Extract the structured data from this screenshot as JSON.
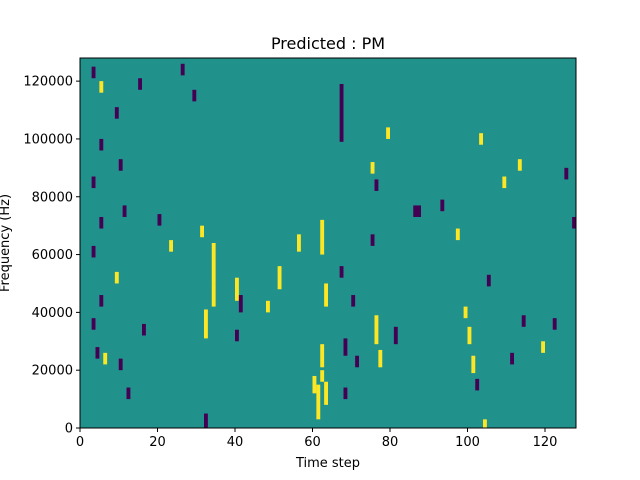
{
  "chart_data": {
    "type": "heatmap",
    "title": "Predicted : PM",
    "xlabel": "Time step",
    "ylabel": "Frequency (Hz)",
    "xlim": [
      0,
      128
    ],
    "ylim": [
      0,
      128000
    ],
    "x_ticks": [
      0,
      20,
      40,
      60,
      80,
      100,
      120
    ],
    "y_ticks": [
      0,
      20000,
      40000,
      60000,
      80000,
      100000,
      120000
    ],
    "x_tick_labels": [
      "0",
      "20",
      "40",
      "60",
      "80",
      "100",
      "120"
    ],
    "y_tick_labels": [
      "0",
      "20000",
      "40000",
      "60000",
      "80000",
      "100000",
      "120000"
    ],
    "grid": false,
    "legend": "none",
    "colormap": "viridis",
    "background_value": 0,
    "colors": {
      "background": "#21918c",
      "high": "#fde725",
      "low": "#440154"
    },
    "value_meaning": {
      "high": 1,
      "low": -1
    },
    "cells_units": "x in time steps, y in Hz",
    "cells": [
      {
        "x": 3,
        "y": 121000,
        "w": 1,
        "h": 4000,
        "v": -1
      },
      {
        "x": 5,
        "y": 116000,
        "w": 1,
        "h": 4000,
        "v": 1
      },
      {
        "x": 5,
        "y": 96000,
        "w": 1,
        "h": 4000,
        "v": -1
      },
      {
        "x": 3,
        "y": 83000,
        "w": 1,
        "h": 4000,
        "v": -1
      },
      {
        "x": 5,
        "y": 69000,
        "w": 1,
        "h": 4000,
        "v": -1
      },
      {
        "x": 3,
        "y": 59000,
        "w": 1,
        "h": 4000,
        "v": -1
      },
      {
        "x": 5,
        "y": 42000,
        "w": 1,
        "h": 4000,
        "v": -1
      },
      {
        "x": 3,
        "y": 34000,
        "w": 1,
        "h": 4000,
        "v": -1
      },
      {
        "x": 4,
        "y": 24000,
        "w": 1,
        "h": 4000,
        "v": -1
      },
      {
        "x": 6,
        "y": 22000,
        "w": 1,
        "h": 4000,
        "v": 1
      },
      {
        "x": 9,
        "y": 107000,
        "w": 1,
        "h": 4000,
        "v": -1
      },
      {
        "x": 10,
        "y": 89000,
        "w": 1,
        "h": 4000,
        "v": -1
      },
      {
        "x": 11,
        "y": 73000,
        "w": 1,
        "h": 4000,
        "v": -1
      },
      {
        "x": 9,
        "y": 50000,
        "w": 1,
        "h": 4000,
        "v": 1
      },
      {
        "x": 10,
        "y": 20000,
        "w": 1,
        "h": 4000,
        "v": -1
      },
      {
        "x": 12,
        "y": 10000,
        "w": 1,
        "h": 4000,
        "v": -1
      },
      {
        "x": 15,
        "y": 117000,
        "w": 1,
        "h": 4000,
        "v": -1
      },
      {
        "x": 16,
        "y": 32000,
        "w": 1,
        "h": 4000,
        "v": -1
      },
      {
        "x": 20,
        "y": 70000,
        "w": 1,
        "h": 4000,
        "v": -1
      },
      {
        "x": 23,
        "y": 61000,
        "w": 1,
        "h": 4000,
        "v": 1
      },
      {
        "x": 26,
        "y": 122000,
        "w": 1,
        "h": 4000,
        "v": -1
      },
      {
        "x": 29,
        "y": 113000,
        "w": 1,
        "h": 4000,
        "v": -1
      },
      {
        "x": 31,
        "y": 66000,
        "w": 1,
        "h": 4000,
        "v": 1
      },
      {
        "x": 32,
        "y": 31000,
        "w": 1,
        "h": 10000,
        "v": 1
      },
      {
        "x": 32,
        "y": -1000,
        "w": 1,
        "h": 6000,
        "v": -1
      },
      {
        "x": 34,
        "y": 50000,
        "w": 1,
        "h": 14000,
        "v": 1
      },
      {
        "x": 34,
        "y": 42000,
        "w": 1,
        "h": 8000,
        "v": 1
      },
      {
        "x": 40,
        "y": 30000,
        "w": 1,
        "h": 4000,
        "v": -1
      },
      {
        "x": 40,
        "y": 44000,
        "w": 1,
        "h": 8000,
        "v": 1
      },
      {
        "x": 41,
        "y": 40000,
        "w": 1,
        "h": 6000,
        "v": -1
      },
      {
        "x": 48,
        "y": 40000,
        "w": 1,
        "h": 4000,
        "v": 1
      },
      {
        "x": 51,
        "y": 48000,
        "w": 1,
        "h": 8000,
        "v": 1
      },
      {
        "x": 56,
        "y": 61000,
        "w": 1,
        "h": 6000,
        "v": 1
      },
      {
        "x": 62,
        "y": 21000,
        "w": 1,
        "h": 8000,
        "v": 1
      },
      {
        "x": 60,
        "y": 12000,
        "w": 1,
        "h": 6000,
        "v": 1
      },
      {
        "x": 61,
        "y": 3000,
        "w": 1,
        "h": 12000,
        "v": 1
      },
      {
        "x": 62,
        "y": 16000,
        "w": 1,
        "h": 4000,
        "v": 1
      },
      {
        "x": 63,
        "y": 8000,
        "w": 1,
        "h": 8000,
        "v": 1
      },
      {
        "x": 62,
        "y": 60000,
        "w": 1,
        "h": 12000,
        "v": 1
      },
      {
        "x": 63,
        "y": 42000,
        "w": 1,
        "h": 8000,
        "v": 1
      },
      {
        "x": 67,
        "y": 99000,
        "w": 1,
        "h": 20000,
        "v": -1
      },
      {
        "x": 67,
        "y": 52000,
        "w": 1,
        "h": 4000,
        "v": -1
      },
      {
        "x": 68,
        "y": 25000,
        "w": 1,
        "h": 6000,
        "v": -1
      },
      {
        "x": 68,
        "y": 10000,
        "w": 1,
        "h": 4000,
        "v": -1
      },
      {
        "x": 70,
        "y": 42000,
        "w": 1,
        "h": 4000,
        "v": -1
      },
      {
        "x": 71,
        "y": 21000,
        "w": 1,
        "h": 4000,
        "v": -1
      },
      {
        "x": 75,
        "y": 88000,
        "w": 1,
        "h": 4000,
        "v": 1
      },
      {
        "x": 75,
        "y": 63000,
        "w": 1,
        "h": 4000,
        "v": -1
      },
      {
        "x": 76,
        "y": 29000,
        "w": 1,
        "h": 10000,
        "v": 1
      },
      {
        "x": 77,
        "y": 21000,
        "w": 1,
        "h": 6000,
        "v": 1
      },
      {
        "x": 76,
        "y": 82000,
        "w": 1,
        "h": 4000,
        "v": -1
      },
      {
        "x": 79,
        "y": 100000,
        "w": 1,
        "h": 4000,
        "v": 1
      },
      {
        "x": 81,
        "y": 29000,
        "w": 1,
        "h": 6000,
        "v": -1
      },
      {
        "x": 86,
        "y": 73000,
        "w": 2,
        "h": 4000,
        "v": -1
      },
      {
        "x": 93,
        "y": 75000,
        "w": 1,
        "h": 4000,
        "v": -1
      },
      {
        "x": 97,
        "y": 65000,
        "w": 1,
        "h": 4000,
        "v": 1
      },
      {
        "x": 99,
        "y": 38000,
        "w": 1,
        "h": 4000,
        "v": 1
      },
      {
        "x": 100,
        "y": 29000,
        "w": 1,
        "h": 6000,
        "v": 1
      },
      {
        "x": 101,
        "y": 19000,
        "w": 1,
        "h": 6000,
        "v": 1
      },
      {
        "x": 102,
        "y": 13000,
        "w": 1,
        "h": 4000,
        "v": -1
      },
      {
        "x": 103,
        "y": 98000,
        "w": 1,
        "h": 4000,
        "v": 1
      },
      {
        "x": 104,
        "y": -1000,
        "w": 1,
        "h": 4000,
        "v": 1
      },
      {
        "x": 105,
        "y": 49000,
        "w": 1,
        "h": 4000,
        "v": -1
      },
      {
        "x": 109,
        "y": 83000,
        "w": 1,
        "h": 4000,
        "v": 1
      },
      {
        "x": 111,
        "y": 22000,
        "w": 1,
        "h": 4000,
        "v": -1
      },
      {
        "x": 113,
        "y": 89000,
        "w": 1,
        "h": 4000,
        "v": 1
      },
      {
        "x": 114,
        "y": 35000,
        "w": 1,
        "h": 4000,
        "v": -1
      },
      {
        "x": 119,
        "y": 26000,
        "w": 1,
        "h": 4000,
        "v": 1
      },
      {
        "x": 122,
        "y": 34000,
        "w": 1,
        "h": 4000,
        "v": -1
      },
      {
        "x": 125,
        "y": 86000,
        "w": 1,
        "h": 4000,
        "v": -1
      },
      {
        "x": 127,
        "y": 69000,
        "w": 1,
        "h": 4000,
        "v": -1
      }
    ]
  }
}
